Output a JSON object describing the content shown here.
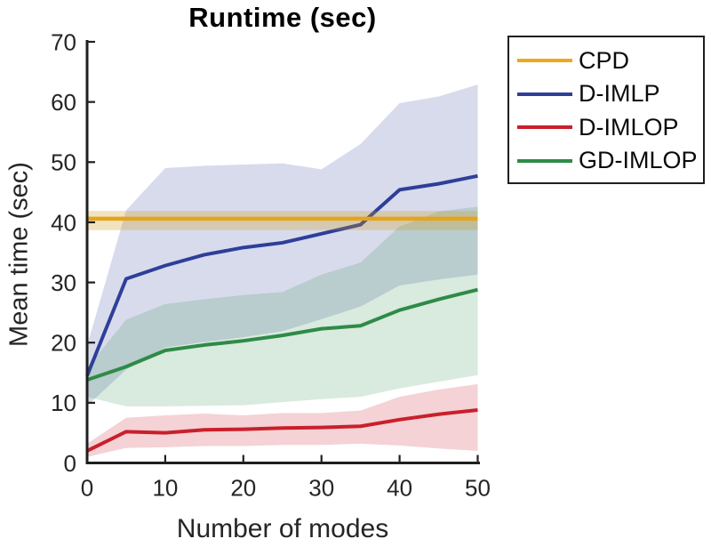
{
  "chart_data": {
    "type": "line",
    "title": "Runtime (sec)",
    "xlabel": "Number of modes",
    "ylabel": "Mean time (sec)",
    "xlim": [
      0,
      50
    ],
    "ylim": [
      0,
      70
    ],
    "xticks": [
      0,
      10,
      20,
      30,
      40,
      50
    ],
    "yticks": [
      0,
      10,
      20,
      30,
      40,
      50,
      60,
      70
    ],
    "grid": false,
    "legend_position": "outside-top-right",
    "x": [
      0,
      5,
      10,
      15,
      20,
      25,
      30,
      35,
      40,
      45,
      50
    ],
    "series": [
      {
        "name": "CPD",
        "color": "#EDA91C",
        "band_color": "#CD9B1E",
        "band_alpha": 0.28,
        "values": [
          40.6,
          40.6,
          40.6,
          40.6,
          40.6,
          40.6,
          40.6,
          40.6,
          40.6,
          40.6,
          40.6
        ],
        "band_upper": [
          41.9,
          41.9,
          41.9,
          41.9,
          41.9,
          41.9,
          41.9,
          41.9,
          41.9,
          41.9,
          41.9
        ],
        "band_lower": [
          38.7,
          38.7,
          38.7,
          38.7,
          38.7,
          38.7,
          38.7,
          38.7,
          38.7,
          38.7,
          38.7
        ]
      },
      {
        "name": "D-IMLP",
        "color": "#2E3F99",
        "band_color": "#2E3F99",
        "band_alpha": 0.19,
        "values": [
          14.5,
          30.6,
          32.8,
          34.6,
          35.8,
          36.6,
          38.1,
          39.6,
          45.4,
          46.4,
          47.7
        ],
        "band_upper": [
          19.5,
          42.0,
          49.0,
          49.4,
          49.6,
          49.8,
          48.8,
          53.0,
          59.8,
          60.9,
          62.9
        ],
        "band_lower": [
          9.5,
          15.5,
          19.2,
          20.1,
          20.9,
          21.9,
          23.9,
          26.0,
          29.5,
          30.5,
          31.3
        ]
      },
      {
        "name": "D-IMLOP",
        "color": "#C8202B",
        "band_color": "#C8202B",
        "band_alpha": 0.2,
        "values": [
          2.0,
          5.2,
          5.0,
          5.5,
          5.6,
          5.8,
          5.9,
          6.1,
          7.2,
          8.1,
          8.8
        ],
        "band_upper": [
          3.2,
          7.5,
          7.9,
          8.2,
          7.9,
          8.3,
          8.3,
          8.7,
          11.0,
          12.2,
          13.1
        ],
        "band_lower": [
          1.0,
          2.5,
          2.6,
          2.8,
          2.8,
          3.0,
          3.0,
          3.2,
          2.9,
          2.4,
          2.0
        ]
      },
      {
        "name": "GD-IMLOP",
        "color": "#2E8B47",
        "band_color": "#2E8B47",
        "band_alpha": 0.18,
        "values": [
          13.8,
          16.0,
          18.7,
          19.6,
          20.3,
          21.2,
          22.3,
          22.8,
          25.4,
          27.2,
          28.8
        ],
        "band_upper": [
          15.8,
          23.8,
          26.4,
          27.2,
          27.9,
          28.4,
          31.3,
          33.3,
          39.3,
          41.8,
          42.6
        ],
        "band_lower": [
          11.0,
          9.4,
          9.4,
          9.5,
          9.6,
          10.1,
          10.6,
          11.0,
          12.4,
          13.5,
          14.6
        ]
      }
    ]
  }
}
